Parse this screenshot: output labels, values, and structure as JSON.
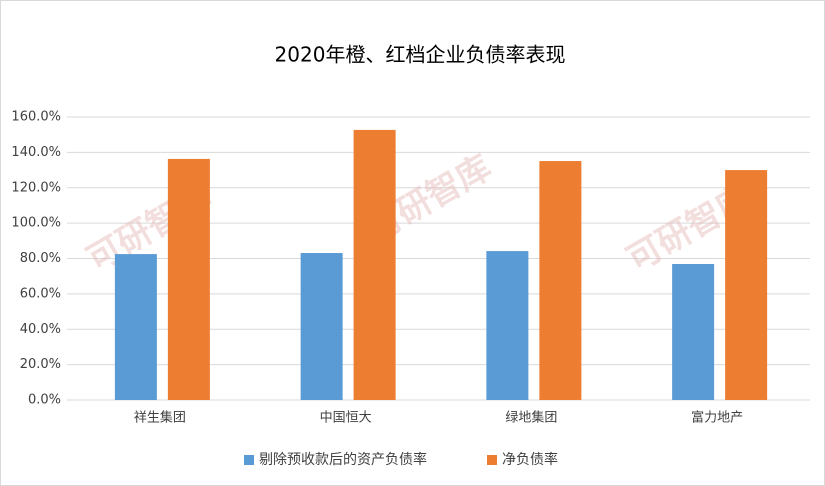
{
  "chart_data": {
    "type": "bar",
    "title": "2020年橙、红档企业负债率表现",
    "categories": [
      "祥生集团",
      "中国恒大",
      "绿地集团",
      "富力地产"
    ],
    "series": [
      {
        "name": "剔除预收款后的资产负债率",
        "color": "#5b9bd5",
        "values": [
          82.5,
          83.1,
          84.2,
          76.9
        ]
      },
      {
        "name": "净负债率",
        "color": "#ed7d31",
        "values": [
          136.3,
          152.7,
          135.1,
          130.0
        ]
      }
    ],
    "ylim": [
      0,
      160
    ],
    "yticks": [
      {
        "value": 0,
        "label": "0.0%"
      },
      {
        "value": 20,
        "label": "20.0%"
      },
      {
        "value": 40,
        "label": "40.0%"
      },
      {
        "value": 60,
        "label": "60.0%"
      },
      {
        "value": 80,
        "label": "80.0%"
      },
      {
        "value": 100,
        "label": "100.0%"
      },
      {
        "value": 120,
        "label": "120.0%"
      },
      {
        "value": 140,
        "label": "140.0%"
      },
      {
        "value": 160,
        "label": "160.0%"
      }
    ],
    "grid": true,
    "legend": "bottom",
    "watermark": "可研智库"
  }
}
